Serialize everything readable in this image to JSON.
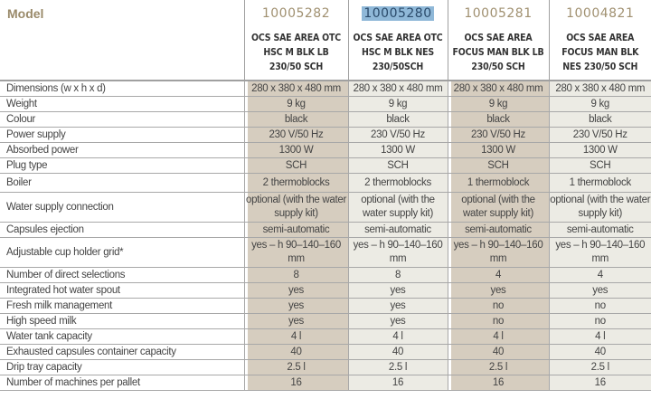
{
  "header": {
    "label": "Model",
    "models": [
      {
        "code": "10005282",
        "name": "OCS SAE AREA OTC HSC M BLK LB 230/50 SCH"
      },
      {
        "code": "10005280",
        "name": "OCS SAE AREA OTC HSC M BLK NES 230/50SCH",
        "selected": true
      },
      {
        "code": "10005281",
        "name": "OCS SAE AREA FOCUS MAN BLK LB 230/50 SCH"
      },
      {
        "code": "10004821",
        "name": "OCS SAE AREA FOCUS MAN BLK NES 230/50 SCH"
      }
    ]
  },
  "rows": [
    {
      "label": "Dimensions (w x h x d)",
      "values": [
        "280 x 380 x 480 mm",
        "280 x 380 x 480 mm",
        "280 x 380 x 480 mm",
        "280 x 380 x 480 mm"
      ]
    },
    {
      "label": "Weight",
      "values": [
        "9 kg",
        "9 kg",
        "9 kg",
        "9 kg"
      ]
    },
    {
      "label": "Colour",
      "values": [
        "black",
        "black",
        "black",
        "black"
      ]
    },
    {
      "label": "Power supply",
      "values": [
        "230 V/50 Hz",
        "230 V/50 Hz",
        "230 V/50 Hz",
        "230 V/50 Hz"
      ]
    },
    {
      "label": "Absorbed power",
      "values": [
        "1300 W",
        "1300 W",
        "1300 W",
        "1300 W"
      ]
    },
    {
      "label": "Plug type",
      "values": [
        "SCH",
        "SCH",
        "SCH",
        "SCH"
      ]
    },
    {
      "label": "Boiler",
      "values": [
        "2 thermoblocks",
        "2 thermoblocks",
        "1 thermoblock",
        "1 thermoblock"
      ]
    },
    {
      "label": "Water supply connection",
      "values": [
        "optional (with the water supply kit)",
        "optional (with the water supply kit)",
        "optional (with the water supply kit)",
        "optional (with the water supply kit)"
      ]
    },
    {
      "label": "Capsules ejection",
      "values": [
        "semi-automatic",
        "semi-automatic",
        "semi-automatic",
        "semi-automatic"
      ]
    },
    {
      "label": "Adjustable cup holder grid*",
      "values": [
        "yes – h 90–140–160 mm",
        "yes – h 90–140–160 mm",
        "yes – h 90–140–160 mm",
        "yes – h 90–140–160 mm"
      ]
    },
    {
      "label": "Number of direct selections",
      "values": [
        "8",
        "8",
        "4",
        "4"
      ]
    },
    {
      "label": "Integrated hot water spout",
      "values": [
        "yes",
        "yes",
        "yes",
        "yes"
      ]
    },
    {
      "label": "Fresh milk management",
      "values": [
        "yes",
        "yes",
        "no",
        "no"
      ]
    },
    {
      "label": "High speed milk",
      "values": [
        "yes",
        "yes",
        "no",
        "no"
      ]
    },
    {
      "label": "Water tank capacity",
      "values": [
        "4 l",
        "4 l",
        "4 l",
        "4 l"
      ]
    },
    {
      "label": "Exhausted capsules container capacity",
      "values": [
        "40",
        "40",
        "40",
        "40"
      ]
    },
    {
      "label": "Drip tray capacity",
      "values": [
        "2.5 l",
        "2.5 l",
        "2.5 l",
        "2.5 l"
      ]
    },
    {
      "label": "Number of machines per pallet",
      "values": [
        "16",
        "16",
        "16",
        "16"
      ]
    }
  ]
}
